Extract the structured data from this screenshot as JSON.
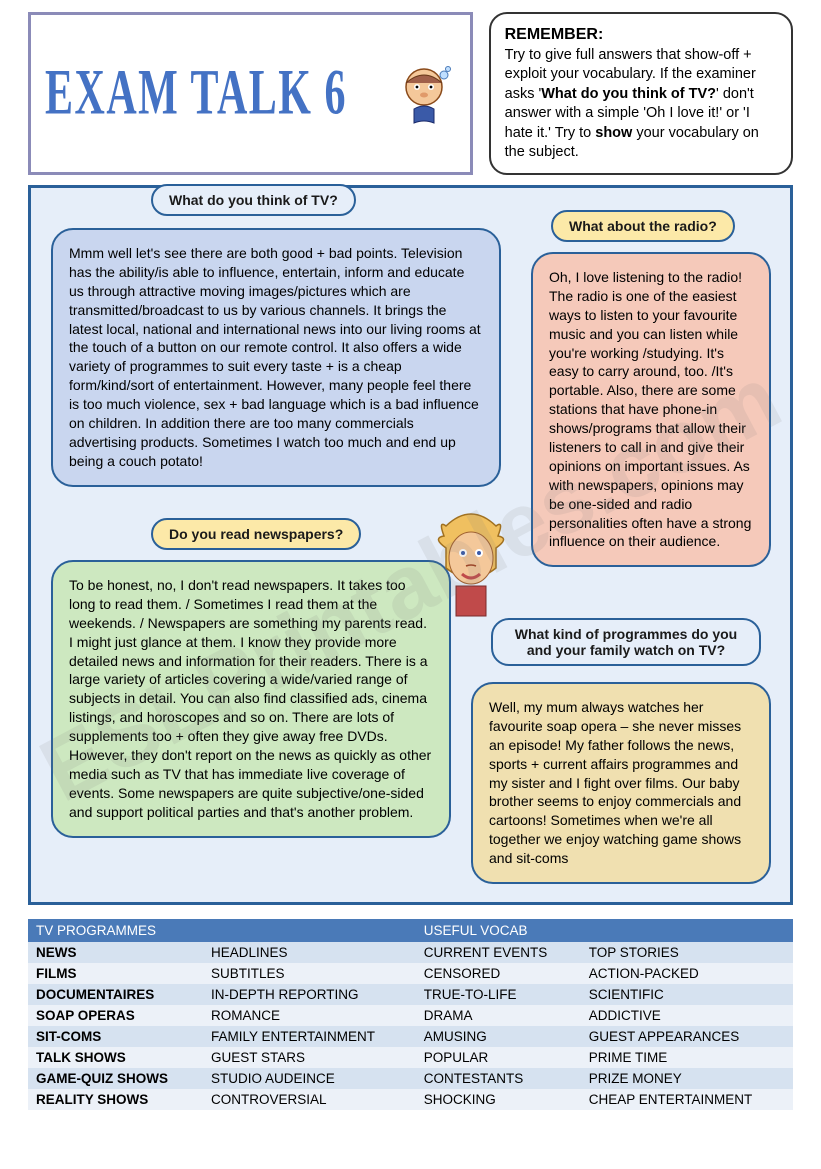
{
  "title": "EXAM TALK 6",
  "remember": {
    "heading": "REMEMBER:",
    "body": "Try to give full answers that show-off + exploit your vocabulary. If the examiner asks 'What do you think of TV?' don't answer with a simple 'Oh I love it!' or 'I hate it.' Try to show your vocabulary on the subject."
  },
  "questions": {
    "q1": "What do you think of TV?",
    "q2": "What about the radio?",
    "q3": "Do you read newspapers?",
    "q4": "What kind of programmes do you and your family watch on TV?"
  },
  "answers": {
    "a1": "Mmm well let's see there are both good + bad points. Television has the ability/is able to influence, entertain, inform and educate us through attractive moving images/pictures which are transmitted/broadcast to us by various channels. It brings the latest local, national and international news into our living rooms at the touch of a button on our remote control. It also offers a wide variety of programmes to suit every taste + is a cheap form/kind/sort of entertainment. However, many people feel there is too much violence, sex + bad language which is a bad influence on children. In addition there are too many commercials advertising products. Sometimes I watch too much and end up being a couch potato!",
    "a2": "Oh, I love listening to the radio! The radio is one of the easiest ways to listen to your favourite music and you can listen while you're working /studying. It's easy to carry around, too. /It's portable. Also, there are some stations that have phone-in shows/programs that allow their listeners to call in and give their opinions on important issues. As with newspapers, opinions may be one-sided and radio personalities often have a strong influence on their audience.",
    "a3": "To be honest, no, I don't read newspapers. It takes too long to read them. / Sometimes I read them at the weekends. / Newspapers are something my parents read. I might just glance at them. I know they provide more detailed news and information for their readers. There is a large variety of articles covering a wide/varied range of subjects in detail. You can also find classified ads, cinema listings, and horoscopes and so on. There are lots of supplements too + often they give away free DVDs. However, they don't report on the news as quickly as other media such as TV that has immediate live coverage of events. Some newspapers are quite subjective/one-sided and support political parties and that's another problem.",
    "a4": "Well, my mum always watches her favourite soap opera – she never misses an episode! My father follows the news, sports + current affairs programmes and my sister and I fight over films. Our baby brother seems to enjoy commercials and cartoons! Sometimes when we're all together we enjoy watching game shows and sit-coms"
  },
  "bubble_colors": {
    "a1": "#c9d6ef",
    "a2": "#f5c9ba",
    "a3": "#cde8c0",
    "a4": "#f0e0b0"
  },
  "table": {
    "headers": [
      "TV PROGRAMMES",
      "",
      "USEFUL VOCAB",
      ""
    ],
    "rows": [
      [
        "NEWS",
        "HEADLINES",
        "CURRENT EVENTS",
        "TOP STORIES"
      ],
      [
        "FILMS",
        "SUBTITLES",
        "CENSORED",
        "ACTION-PACKED"
      ],
      [
        "DOCUMENTAIRES",
        "IN-DEPTH REPORTING",
        "TRUE-TO-LIFE",
        "SCIENTIFIC"
      ],
      [
        "SOAP OPERAS",
        "ROMANCE",
        "DRAMA",
        "ADDICTIVE"
      ],
      [
        "SIT-COMS",
        "FAMILY ENTERTAINMENT",
        "AMUSING",
        "GUEST APPEARANCES"
      ],
      [
        "TALK SHOWS",
        "GUEST STARS",
        "POPULAR",
        "PRIME TIME"
      ],
      [
        "GAME-QUIZ SHOWS",
        "STUDIO AUDEINCE",
        "CONTESTANTS",
        "PRIZE MONEY"
      ],
      [
        "REALITY SHOWS",
        "CONTROVERSIAL",
        "SHOCKING",
        "CHEAP ENTERTAINMENT"
      ]
    ]
  },
  "watermark": "ESLPrintables.com"
}
